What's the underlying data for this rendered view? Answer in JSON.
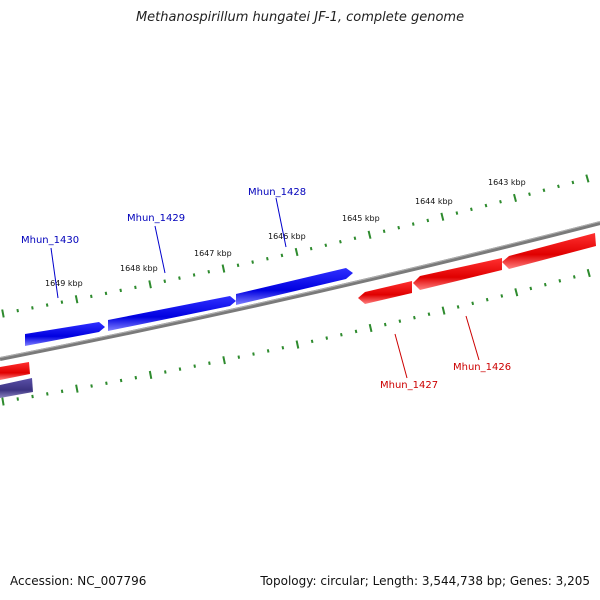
{
  "title": "Methanospirillum hungatei JF-1, complete genome",
  "footer": {
    "accession": "Accession: NC_007796",
    "info": "Topology: circular; Length: 3,544,738 bp; Genes: 3,205"
  },
  "colors": {
    "forward": "#0000ee",
    "reverse": "#ee0000",
    "backbone": "#808080",
    "tick": "#2e8b2e",
    "other_gene": "#443a88"
  },
  "ticks": [
    "1649 kbp",
    "1648 kbp",
    "1647 kbp",
    "1646 kbp",
    "1645 kbp",
    "1644 kbp",
    "1643 kbp"
  ],
  "genes": [
    {
      "name": "Mhun_1430",
      "strand": "forward"
    },
    {
      "name": "Mhun_1429",
      "strand": "forward"
    },
    {
      "name": "Mhun_1428",
      "strand": "forward"
    },
    {
      "name": "Mhun_1427",
      "strand": "reverse"
    },
    {
      "name": "Mhun_1426",
      "strand": "reverse"
    }
  ]
}
